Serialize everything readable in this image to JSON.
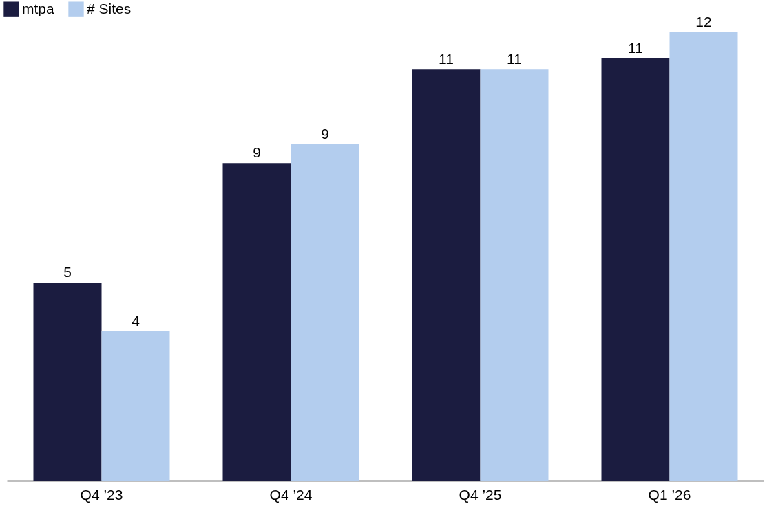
{
  "chart_data": {
    "type": "bar",
    "categories": [
      "Q4 ’23",
      "Q4 ’24",
      "Q4 ’25",
      "Q1 ’26"
    ],
    "series": [
      {
        "name": "mtpa",
        "color": "#1b1c40",
        "values": [
          5.3,
          8.5,
          11.0,
          11.3
        ],
        "value_labels": [
          "5",
          "9",
          "11",
          "11"
        ]
      },
      {
        "name": "# Sites",
        "color": "#b3cdee",
        "values": [
          4,
          9,
          11,
          12
        ],
        "value_labels": [
          "4",
          "9",
          "11",
          "12"
        ]
      }
    ],
    "legend": "top left",
    "grid": false
  }
}
